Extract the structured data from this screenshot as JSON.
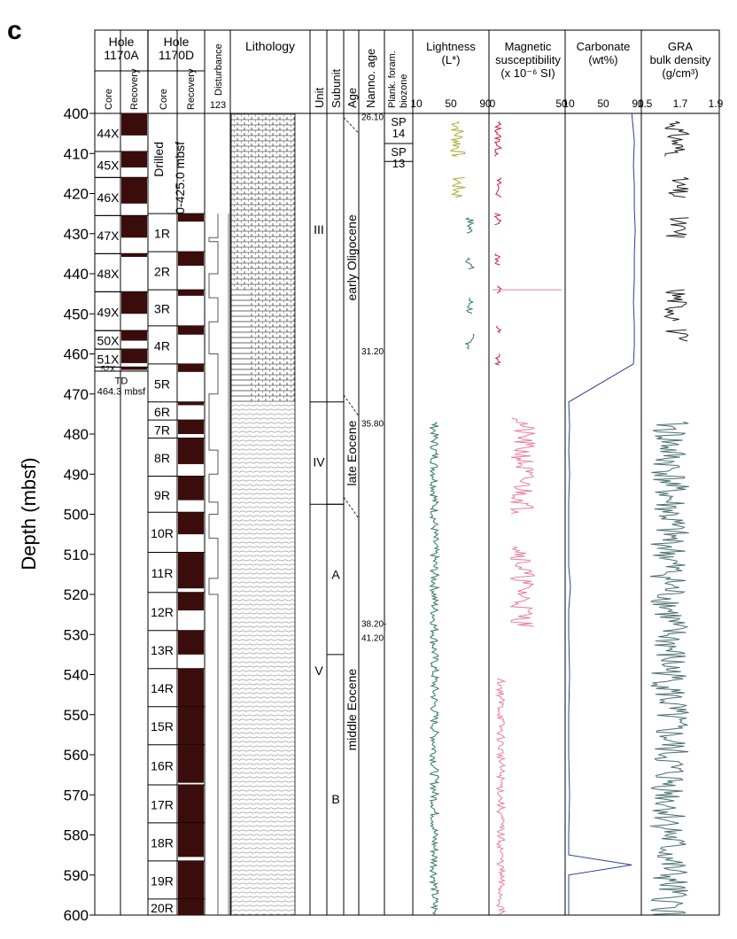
{
  "panel_label": "c",
  "y_axis": {
    "label": "Depth (mbsf)",
    "min": 400,
    "max": 600,
    "ticks": [
      "400",
      "410",
      "420",
      "430",
      "440",
      "450",
      "460",
      "470",
      "480",
      "490",
      "500",
      "510",
      "520",
      "530",
      "540",
      "550",
      "560",
      "570",
      "580",
      "590",
      "600"
    ]
  },
  "headers": {
    "hole_a": [
      "Hole",
      "1170A"
    ],
    "hole_d": [
      "Hole",
      "1170D"
    ],
    "core": "Core",
    "recovery": "Recovery",
    "disturbance": "Disturbance",
    "disturbance_scale": "123",
    "lithology": "Lithology",
    "unit": "Unit",
    "subunit": "Subunit",
    "age": "Age",
    "nanno_age": "Nanno. age",
    "plank_foram": [
      "Plank. foram.",
      "biozone"
    ],
    "lightness": [
      "Lightness",
      "(L*)"
    ],
    "magsus": [
      "Magnetic",
      "susceptibility",
      "(x 10⁻⁶ SI)"
    ],
    "carbonate": [
      "Carbonate",
      "(wt%)"
    ],
    "gra": [
      "GRA",
      "bulk density",
      "(g/cm³)"
    ]
  },
  "hole_a_cores": [
    {
      "label": "44X",
      "top": 400,
      "bottom": 409.5,
      "rec_bottom": 405.5
    },
    {
      "label": "45X",
      "top": 409.5,
      "bottom": 416,
      "rec_bottom": 413.5
    },
    {
      "label": "46X",
      "top": 416,
      "bottom": 425.5,
      "rec_bottom": 422.5
    },
    {
      "label": "47X",
      "top": 425.5,
      "bottom": 435,
      "rec_bottom": 431
    },
    {
      "label": "48X",
      "top": 435,
      "bottom": 444.5,
      "rec_bottom": 435.8
    },
    {
      "label": "49X",
      "top": 444.5,
      "bottom": 454.2,
      "rec_bottom": 450
    },
    {
      "label": "50X",
      "top": 454.2,
      "bottom": 458.8,
      "rec_bottom": 456.7
    },
    {
      "label": "51X",
      "top": 458.8,
      "bottom": 463.3,
      "rec_bottom": 462.3
    },
    {
      "label": "52X",
      "top": 463.3,
      "bottom": 464.3,
      "rec_bottom": 464
    }
  ],
  "td_label": [
    "TD",
    "464.3 mbsf"
  ],
  "drilled_label": [
    "Drilled",
    "0-425.0 mbsf"
  ],
  "hole_d_cores": [
    {
      "label": "1R",
      "top": 425,
      "bottom": 434.5,
      "rec_bottom": 427
    },
    {
      "label": "2R",
      "top": 434.5,
      "bottom": 444,
      "rec_bottom": 438
    },
    {
      "label": "3R",
      "top": 444,
      "bottom": 453,
      "rec_bottom": 445.5
    },
    {
      "label": "4R",
      "top": 453,
      "bottom": 462.5,
      "rec_bottom": 455.2
    },
    {
      "label": "5R",
      "top": 462.5,
      "bottom": 472,
      "rec_bottom": 464.5
    },
    {
      "label": "6R",
      "top": 472,
      "bottom": 476.5,
      "rec_bottom": 472.8
    },
    {
      "label": "7R",
      "top": 476.5,
      "bottom": 481,
      "rec_bottom": 480
    },
    {
      "label": "8R",
      "top": 481,
      "bottom": 490.5,
      "rec_bottom": 487.5
    },
    {
      "label": "9R",
      "top": 490.5,
      "bottom": 499.5,
      "rec_bottom": 496.5
    },
    {
      "label": "10R",
      "top": 499.5,
      "bottom": 509.5,
      "rec_bottom": 505
    },
    {
      "label": "11R",
      "top": 509.5,
      "bottom": 519.5,
      "rec_bottom": 518.5
    },
    {
      "label": "12R",
      "top": 519.5,
      "bottom": 529,
      "rec_bottom": 524
    },
    {
      "label": "13R",
      "top": 529,
      "bottom": 538.5,
      "rec_bottom": 535
    },
    {
      "label": "14R",
      "top": 538.5,
      "bottom": 548,
      "rec_bottom": 548
    },
    {
      "label": "15R",
      "top": 548,
      "bottom": 557.5,
      "rec_bottom": 557.5
    },
    {
      "label": "16R",
      "top": 557.5,
      "bottom": 567.5,
      "rec_bottom": 567
    },
    {
      "label": "17R",
      "top": 567.5,
      "bottom": 577,
      "rec_bottom": 577
    },
    {
      "label": "18R",
      "top": 577,
      "bottom": 586.5,
      "rec_bottom": 585.5
    },
    {
      "label": "19R",
      "top": 586.5,
      "bottom": 596,
      "rec_bottom": 596
    },
    {
      "label": "20R",
      "top": 596,
      "bottom": 600,
      "rec_bottom": 600
    }
  ],
  "units": [
    {
      "label": "III",
      "top": 400,
      "bottom": 472,
      "label_depth": 429
    },
    {
      "label": "IV",
      "top": 472,
      "bottom": 497.5,
      "label_depth": 487
    },
    {
      "label": "V",
      "top": 497.5,
      "bottom": 600,
      "label_depth": 539
    }
  ],
  "subunits": [
    {
      "label": "A",
      "top": 497.5,
      "bottom": 535,
      "label_depth": 515
    },
    {
      "label": "B",
      "top": 535,
      "bottom": 600,
      "label_depth": 571
    }
  ],
  "ages": [
    {
      "label": "early Oligocene",
      "top": 400,
      "bottom": 472
    },
    {
      "label": "late Eocene",
      "top": 472,
      "bottom": 497.5
    },
    {
      "label": "middle Eocene",
      "top": 497.5,
      "bottom": 600
    }
  ],
  "nanno_ages": [
    {
      "label": "26.10",
      "depth": 400.5
    },
    {
      "label": "31.20",
      "depth": 459
    },
    {
      "label": "35.80",
      "depth": 477
    },
    {
      "label": "38.20-",
      "depth": 527
    },
    {
      "label": "41.20",
      "depth": 530.5
    }
  ],
  "biozones": [
    {
      "label": [
        "SP",
        "14"
      ],
      "top": 400,
      "bottom": 407.5
    },
    {
      "label": [
        "SP",
        "13"
      ],
      "top": 407.5,
      "bottom": 412
    }
  ],
  "lithology": [
    {
      "type": "chalk",
      "top": 400,
      "bottom": 444
    },
    {
      "type": "mixed",
      "top": 444,
      "bottom": 472
    },
    {
      "type": "silt",
      "top": 472,
      "bottom": 600
    }
  ],
  "chart_data": [
    {
      "type": "line",
      "title": "Lightness (L*)",
      "xlim": [
        10,
        90
      ],
      "ticks": [
        "10",
        "50",
        "90"
      ],
      "color_upper": "#a6ae3a",
      "color_lower": "#2e7b55",
      "ylim": [
        600,
        400
      ],
      "note_segments": [
        [
          402,
          411
        ],
        [
          416,
          421
        ],
        [
          426,
          430
        ],
        [
          436,
          439
        ],
        [
          446,
          450
        ],
        [
          455,
          459
        ],
        [
          477,
          600
        ]
      ]
    },
    {
      "type": "line",
      "title": "Magnetic susceptibility",
      "xlim": [
        0,
        50
      ],
      "ticks": [
        "0",
        "50"
      ],
      "color_upper": "#d21d3c",
      "color_lower": "#e87ea0",
      "ylim": [
        600,
        400
      ]
    },
    {
      "type": "line",
      "title": "Carbonate (wt%)",
      "xlim": [
        10,
        90
      ],
      "ticks": [
        "10",
        "50",
        "90"
      ],
      "color": "#2a3f9a",
      "depths": [
        400,
        402,
        407,
        413,
        418,
        424,
        429,
        435,
        441,
        447,
        453,
        458,
        462.5,
        472,
        478,
        484,
        490,
        497,
        502,
        508,
        513,
        518,
        524,
        530,
        540,
        550,
        560,
        570,
        580,
        585,
        587.5,
        590,
        600
      ],
      "values": [
        83,
        84,
        86,
        85,
        86,
        86,
        87,
        86,
        86,
        85,
        86,
        86,
        85,
        10,
        11,
        10,
        11,
        10,
        10,
        10,
        10,
        12,
        10,
        10,
        11,
        10,
        10,
        11,
        10,
        10,
        83,
        10,
        10
      ]
    },
    {
      "type": "line",
      "title": "GRA bulk density (g/cm³)",
      "xlim": [
        1.5,
        1.9
      ],
      "ticks": [
        "1.5",
        "1.7",
        "1.9"
      ],
      "color_upper": "#222222",
      "color_lower": "#4a6e6e"
    }
  ]
}
